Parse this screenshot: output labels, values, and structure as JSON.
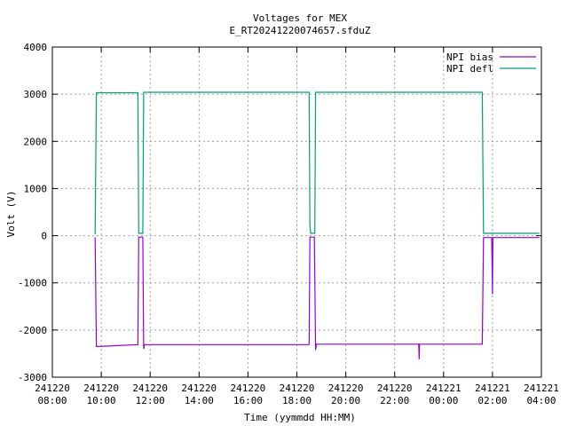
{
  "chart_data": {
    "type": "line",
    "title": "Voltages for MEX",
    "subtitle": "E_RT20241220074657.sfduZ",
    "xlabel": "Time (yymmdd HH:MM)",
    "ylabel": "Volt (V)",
    "xlim": [
      "241220 08:00",
      "241221 04:00"
    ],
    "ylim": [
      -3000,
      4000
    ],
    "grid": true,
    "legend_position": "top-right",
    "x_ticks": [
      {
        "date": "241220",
        "time": "08:00"
      },
      {
        "date": "241220",
        "time": "10:00"
      },
      {
        "date": "241220",
        "time": "12:00"
      },
      {
        "date": "241220",
        "time": "14:00"
      },
      {
        "date": "241220",
        "time": "16:00"
      },
      {
        "date": "241220",
        "time": "18:00"
      },
      {
        "date": "241220",
        "time": "20:00"
      },
      {
        "date": "241220",
        "time": "22:00"
      },
      {
        "date": "241221",
        "time": "00:00"
      },
      {
        "date": "241221",
        "time": "02:00"
      },
      {
        "date": "241221",
        "time": "04:00"
      }
    ],
    "y_ticks": [
      "-3000",
      "-2000",
      "-1000",
      "0",
      "1000",
      "2000",
      "3000",
      "4000"
    ],
    "series": [
      {
        "name": "NPI bias",
        "color": "#9400d3",
        "points": [
          [
            "241220 09:45",
            -30
          ],
          [
            "241220 09:48",
            -2350
          ],
          [
            "241220 11:30",
            -2310
          ],
          [
            "241220 11:32",
            -30
          ],
          [
            "241220 11:42",
            -30
          ],
          [
            "241220 11:44",
            -2400
          ],
          [
            "241220 11:46",
            -2310
          ],
          [
            "241220 18:30",
            -2310
          ],
          [
            "241220 18:32",
            -30
          ],
          [
            "241220 18:43",
            -30
          ],
          [
            "241220 18:46",
            -2420
          ],
          [
            "241220 18:48",
            -2300
          ],
          [
            "241220 22:59",
            -2300
          ],
          [
            "241220 23:00",
            -2620
          ],
          [
            "241220 23:01",
            -2300
          ],
          [
            "241221 01:35",
            -2300
          ],
          [
            "241221 01:38",
            -40
          ],
          [
            "241221 01:58",
            -40
          ],
          [
            "241221 02:00",
            -1240
          ],
          [
            "241221 02:01",
            -40
          ],
          [
            "241221 03:55",
            -40
          ]
        ]
      },
      {
        "name": "NPI defl",
        "color": "#009e73",
        "points": [
          [
            "241220 09:45",
            30
          ],
          [
            "241220 09:48",
            3030
          ],
          [
            "241220 11:30",
            3030
          ],
          [
            "241220 11:32",
            50
          ],
          [
            "241220 11:42",
            50
          ],
          [
            "241220 11:44",
            3040
          ],
          [
            "241220 18:30",
            3040
          ],
          [
            "241220 18:32",
            220
          ],
          [
            "241220 18:34",
            50
          ],
          [
            "241220 18:44",
            50
          ],
          [
            "241220 18:46",
            3040
          ],
          [
            "241221 01:35",
            3040
          ],
          [
            "241221 01:38",
            50
          ],
          [
            "241221 03:55",
            50
          ]
        ]
      }
    ]
  }
}
